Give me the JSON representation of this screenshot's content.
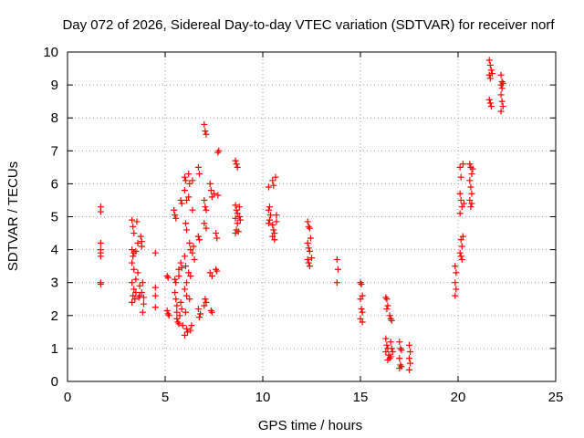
{
  "chart_data": {
    "type": "scatter",
    "title": "Day 072 of 2026, Sidereal Day-to-day VTEC variation (SDTVAR) for receiver norf",
    "xlabel": "GPS time / hours",
    "ylabel": "SDTVAR / TECUs",
    "xlim": [
      0,
      25
    ],
    "ylim": [
      0,
      10
    ],
    "x_ticks": [
      0,
      5,
      10,
      15,
      20,
      25
    ],
    "y_ticks": [
      0,
      1,
      2,
      3,
      4,
      5,
      6,
      7,
      8,
      9,
      10
    ],
    "x_tick_labels": [
      "0",
      "5",
      "10",
      "15",
      "20",
      "25"
    ],
    "y_tick_labels": [
      "0",
      "1",
      "2",
      "3",
      "4",
      "5",
      "6",
      "7",
      "8",
      "9",
      "10"
    ],
    "grid": true,
    "marker": "plus",
    "color": "#ff0000",
    "series": [
      {
        "name": "SDTVAR",
        "points": [
          [
            1.7,
            5.3
          ],
          [
            1.7,
            5.15
          ],
          [
            1.7,
            4.2
          ],
          [
            1.7,
            4.0
          ],
          [
            1.7,
            3.9
          ],
          [
            1.7,
            3.8
          ],
          [
            1.7,
            3.0
          ],
          [
            1.7,
            2.95
          ],
          [
            3.3,
            4.9
          ],
          [
            3.35,
            4.7
          ],
          [
            3.4,
            4.5
          ],
          [
            3.3,
            4.0
          ],
          [
            3.35,
            3.8
          ],
          [
            3.3,
            3.6
          ],
          [
            3.4,
            3.4
          ],
          [
            3.3,
            3.0
          ],
          [
            3.4,
            2.8
          ],
          [
            3.35,
            2.6
          ],
          [
            3.45,
            2.5
          ],
          [
            3.3,
            2.4
          ],
          [
            3.5,
            2.7
          ],
          [
            3.5,
            3.1
          ],
          [
            3.55,
            4.85
          ],
          [
            3.6,
            4.2
          ],
          [
            3.6,
            3.3
          ],
          [
            3.65,
            2.55
          ],
          [
            3.7,
            2.9
          ],
          [
            3.75,
            4.4
          ],
          [
            3.8,
            4.25
          ],
          [
            3.8,
            4.1
          ],
          [
            3.85,
            3.0
          ],
          [
            3.8,
            2.7
          ],
          [
            3.9,
            2.55
          ],
          [
            3.85,
            2.1
          ],
          [
            3.9,
            2.35
          ],
          [
            3.4,
            3.9
          ],
          [
            3.5,
            3.95
          ],
          [
            3.7,
            2.6
          ],
          [
            4.5,
            3.9
          ],
          [
            4.5,
            2.85
          ],
          [
            4.5,
            2.6
          ],
          [
            4.5,
            2.25
          ],
          [
            5.1,
            3.2
          ],
          [
            5.15,
            3.15
          ],
          [
            5.1,
            2.15
          ],
          [
            5.15,
            2.05
          ],
          [
            5.2,
            2.0
          ],
          [
            5.45,
            5.2
          ],
          [
            5.5,
            5.05
          ],
          [
            5.55,
            4.95
          ],
          [
            5.5,
            3.1
          ],
          [
            5.55,
            3.0
          ],
          [
            5.5,
            2.7
          ],
          [
            5.55,
            2.5
          ],
          [
            5.6,
            2.1
          ],
          [
            5.6,
            1.9
          ],
          [
            5.65,
            1.8
          ],
          [
            5.6,
            2.3
          ],
          [
            5.7,
            3.4
          ],
          [
            5.7,
            3.2
          ],
          [
            5.75,
            2.0
          ],
          [
            5.7,
            1.75
          ],
          [
            5.8,
            5.5
          ],
          [
            5.85,
            5.4
          ],
          [
            5.8,
            3.6
          ],
          [
            5.85,
            3.45
          ],
          [
            5.8,
            2.4
          ],
          [
            5.85,
            2.2
          ],
          [
            5.9,
            1.7
          ],
          [
            6.0,
            6.2
          ],
          [
            6.05,
            6.1
          ],
          [
            6.0,
            5.8
          ],
          [
            6.1,
            5.5
          ],
          [
            6.05,
            4.8
          ],
          [
            6.1,
            4.6
          ],
          [
            6.0,
            3.8
          ],
          [
            6.05,
            3.5
          ],
          [
            6.1,
            3.0
          ],
          [
            6.0,
            2.8
          ],
          [
            6.1,
            2.6
          ],
          [
            6.05,
            2.1
          ],
          [
            6.1,
            1.6
          ],
          [
            6.0,
            1.4
          ],
          [
            6.15,
            1.5
          ],
          [
            6.2,
            6.3
          ],
          [
            6.25,
            6.0
          ],
          [
            6.2,
            5.6
          ],
          [
            6.25,
            4.2
          ],
          [
            6.3,
            4.0
          ],
          [
            6.2,
            3.3
          ],
          [
            6.3,
            3.2
          ],
          [
            6.25,
            2.5
          ],
          [
            6.35,
            1.7
          ],
          [
            6.3,
            1.55
          ],
          [
            6.4,
            6.1
          ],
          [
            6.4,
            5.2
          ],
          [
            6.45,
            4.1
          ],
          [
            6.4,
            3.9
          ],
          [
            6.5,
            3.7
          ],
          [
            6.7,
            6.5
          ],
          [
            6.75,
            6.3
          ],
          [
            6.7,
            4.4
          ],
          [
            6.75,
            4.3
          ],
          [
            6.7,
            2.2
          ],
          [
            6.8,
            2.05
          ],
          [
            6.75,
            1.95
          ],
          [
            7.0,
            7.8
          ],
          [
            7.05,
            7.6
          ],
          [
            7.1,
            7.5
          ],
          [
            7.0,
            5.5
          ],
          [
            7.05,
            5.3
          ],
          [
            7.1,
            5.2
          ],
          [
            7.0,
            4.8
          ],
          [
            7.1,
            4.65
          ],
          [
            7.05,
            2.5
          ],
          [
            7.1,
            2.4
          ],
          [
            7.0,
            2.3
          ],
          [
            7.3,
            6.0
          ],
          [
            7.35,
            5.8
          ],
          [
            7.4,
            5.6
          ],
          [
            7.3,
            3.3
          ],
          [
            7.4,
            3.2
          ],
          [
            7.35,
            2.15
          ],
          [
            7.4,
            2.1
          ],
          [
            7.5,
            5.7
          ],
          [
            7.6,
            4.5
          ],
          [
            7.65,
            4.35
          ],
          [
            7.6,
            3.4
          ],
          [
            7.65,
            3.35
          ],
          [
            7.7,
            6.95
          ],
          [
            7.75,
            7.0
          ],
          [
            7.7,
            5.65
          ],
          [
            8.6,
            6.7
          ],
          [
            8.65,
            6.6
          ],
          [
            8.7,
            6.5
          ],
          [
            8.6,
            5.35
          ],
          [
            8.65,
            5.2
          ],
          [
            8.7,
            5.1
          ],
          [
            8.6,
            4.95
          ],
          [
            8.7,
            4.8
          ],
          [
            8.65,
            4.6
          ],
          [
            8.6,
            4.5
          ],
          [
            8.8,
            5.3
          ],
          [
            8.8,
            5.0
          ],
          [
            8.85,
            4.9
          ],
          [
            8.75,
            4.55
          ],
          [
            10.3,
            5.9
          ],
          [
            10.35,
            5.3
          ],
          [
            10.3,
            5.2
          ],
          [
            10.4,
            5.05
          ],
          [
            10.35,
            4.9
          ],
          [
            10.3,
            4.8
          ],
          [
            10.5,
            6.1
          ],
          [
            10.55,
            5.95
          ],
          [
            10.5,
            4.75
          ],
          [
            10.55,
            4.6
          ],
          [
            10.6,
            4.5
          ],
          [
            10.5,
            4.4
          ],
          [
            10.6,
            4.3
          ],
          [
            10.65,
            6.2
          ],
          [
            10.7,
            5.05
          ],
          [
            10.7,
            4.85
          ],
          [
            12.3,
            4.85
          ],
          [
            12.35,
            4.7
          ],
          [
            12.4,
            4.65
          ],
          [
            12.3,
            4.2
          ],
          [
            12.35,
            4.05
          ],
          [
            12.4,
            3.95
          ],
          [
            12.3,
            3.7
          ],
          [
            12.35,
            3.6
          ],
          [
            12.4,
            3.5
          ],
          [
            12.5,
            3.75
          ],
          [
            12.45,
            4.35
          ],
          [
            13.8,
            3.7
          ],
          [
            13.85,
            3.4
          ],
          [
            13.8,
            3.0
          ],
          [
            15.0,
            3.0
          ],
          [
            15.05,
            2.95
          ],
          [
            15.1,
            2.6
          ],
          [
            15.0,
            2.5
          ],
          [
            15.05,
            2.2
          ],
          [
            15.1,
            2.1
          ],
          [
            15.0,
            1.9
          ],
          [
            15.1,
            1.8
          ],
          [
            16.3,
            2.55
          ],
          [
            16.35,
            2.5
          ],
          [
            16.4,
            2.3
          ],
          [
            16.35,
            2.2
          ],
          [
            16.5,
            2.0
          ],
          [
            16.55,
            1.9
          ],
          [
            16.6,
            1.85
          ],
          [
            16.3,
            1.3
          ],
          [
            16.35,
            1.1
          ],
          [
            16.4,
            1.0
          ],
          [
            16.3,
            0.9
          ],
          [
            16.45,
            0.8
          ],
          [
            16.5,
            0.7
          ],
          [
            16.4,
            0.65
          ],
          [
            16.55,
            1.2
          ],
          [
            16.6,
            1.0
          ],
          [
            16.65,
            0.9
          ],
          [
            16.55,
            0.75
          ],
          [
            17.0,
            1.2
          ],
          [
            17.05,
            1.0
          ],
          [
            17.1,
            0.95
          ],
          [
            17.0,
            0.7
          ],
          [
            17.05,
            0.5
          ],
          [
            17.1,
            0.45
          ],
          [
            17.0,
            0.4
          ],
          [
            17.5,
            1.1
          ],
          [
            17.55,
            0.9
          ],
          [
            17.5,
            0.7
          ],
          [
            17.55,
            0.55
          ],
          [
            17.5,
            0.35
          ],
          [
            19.85,
            3.5
          ],
          [
            19.9,
            3.3
          ],
          [
            19.85,
            3.0
          ],
          [
            19.9,
            2.8
          ],
          [
            19.85,
            2.6
          ],
          [
            20.1,
            6.5
          ],
          [
            20.15,
            6.2
          ],
          [
            20.1,
            5.7
          ],
          [
            20.15,
            5.5
          ],
          [
            20.2,
            5.3
          ],
          [
            20.1,
            5.1
          ],
          [
            20.15,
            4.3
          ],
          [
            20.2,
            4.1
          ],
          [
            20.1,
            3.9
          ],
          [
            20.15,
            3.8
          ],
          [
            20.2,
            3.7
          ],
          [
            20.25,
            6.6
          ],
          [
            20.3,
            5.4
          ],
          [
            20.25,
            4.4
          ],
          [
            20.6,
            6.6
          ],
          [
            20.65,
            6.5
          ],
          [
            20.7,
            6.3
          ],
          [
            20.6,
            6.1
          ],
          [
            20.65,
            5.9
          ],
          [
            20.7,
            5.7
          ],
          [
            20.6,
            5.5
          ],
          [
            20.65,
            5.3
          ],
          [
            20.75,
            6.45
          ],
          [
            20.7,
            5.4
          ],
          [
            21.6,
            9.75
          ],
          [
            21.65,
            9.6
          ],
          [
            21.7,
            9.45
          ],
          [
            21.6,
            9.3
          ],
          [
            21.65,
            9.2
          ],
          [
            21.75,
            9.35
          ],
          [
            21.6,
            8.55
          ],
          [
            21.65,
            8.45
          ],
          [
            21.7,
            8.35
          ],
          [
            22.2,
            9.3
          ],
          [
            22.25,
            9.1
          ],
          [
            22.2,
            9.0
          ],
          [
            22.25,
            8.9
          ],
          [
            22.3,
            9.05
          ],
          [
            22.2,
            8.7
          ],
          [
            22.25,
            8.5
          ],
          [
            22.3,
            8.35
          ],
          [
            22.2,
            8.2
          ]
        ]
      }
    ]
  }
}
